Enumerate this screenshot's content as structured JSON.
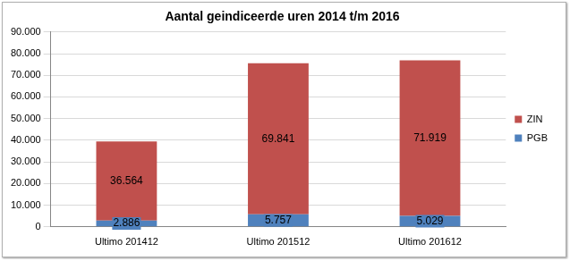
{
  "chart_data": {
    "type": "bar",
    "title": "Aantal geindiceerde uren 2014 t/m 2016",
    "categories": [
      "Ultimo 201412",
      "Ultimo 201512",
      "Ultimo 201612"
    ],
    "series": [
      {
        "name": "PGB",
        "color": "#4f81bd",
        "values": [
          2886,
          5757,
          5029
        ],
        "value_labels": [
          "2.886",
          "5.757",
          "5.029"
        ]
      },
      {
        "name": "ZIN",
        "color": "#c0504d",
        "values": [
          36564,
          69841,
          71919
        ],
        "value_labels": [
          "36.564",
          "69.841",
          "71.919"
        ]
      }
    ],
    "stacked": true,
    "data_labels": true,
    "legend": "right",
    "grid": true,
    "ylim": [
      0,
      90000
    ],
    "yticks": [
      0,
      {
        "value": 10000,
        "label": "10.000"
      },
      {
        "value": 20000,
        "label": "20.000"
      },
      {
        "value": 30000,
        "label": "30.000"
      },
      {
        "value": 40000,
        "label": "40.000"
      },
      {
        "value": 50000,
        "label": "50.000"
      },
      {
        "value": 60000,
        "label": "60.000"
      },
      {
        "value": 70000,
        "label": "70.000"
      },
      {
        "value": 80000,
        "label": "80.000"
      },
      {
        "value": 90000,
        "label": "90.000"
      }
    ]
  }
}
